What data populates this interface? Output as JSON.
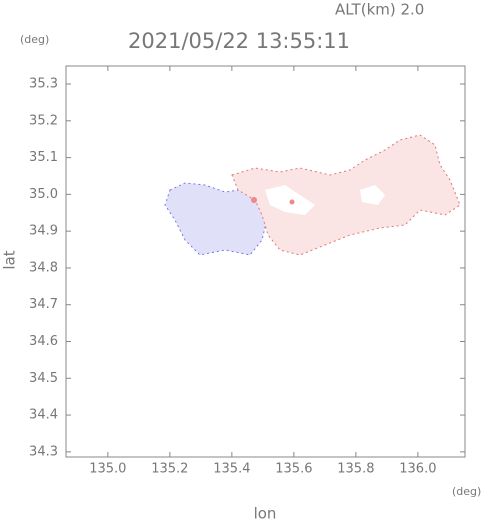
{
  "chart_data": {
    "type": "heatmap",
    "title": "2021/05/22 13:55:11",
    "annotation": "ALT(km) 2.0",
    "x_label": "lon",
    "y_label": "lat",
    "x_unit": "(deg)",
    "y_unit": "(deg)",
    "xlim": [
      134.865,
      136.152
    ],
    "ylim": [
      34.286,
      35.349
    ],
    "xticks": [
      {
        "value": 135.0,
        "label": "135.0"
      },
      {
        "value": 135.2,
        "label": "135.2"
      },
      {
        "value": 135.4,
        "label": "135.4"
      },
      {
        "value": 135.6,
        "label": "135.6"
      },
      {
        "value": 135.8,
        "label": "135.8"
      },
      {
        "value": 136.0,
        "label": "136.0"
      }
    ],
    "yticks": [
      34.3,
      34.4,
      34.5,
      34.6,
      34.7,
      34.8,
      34.9,
      {
        "value": 35.0,
        "label": "35.0"
      },
      35.1,
      35.2,
      35.3
    ]
  }
}
